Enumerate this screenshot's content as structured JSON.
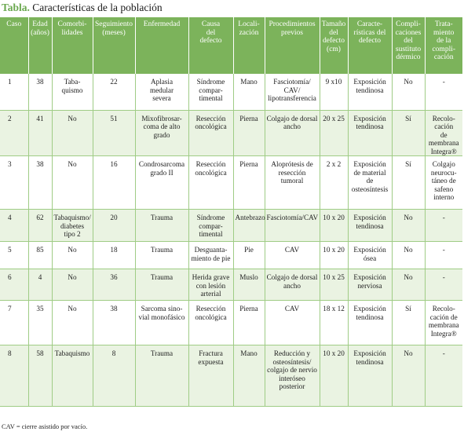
{
  "title": {
    "label": "Tabla.",
    "text": " Características de la población"
  },
  "headers": [
    "Caso",
    "Edad\n(años)",
    "Comorbi-\nlidades",
    "Seguimiento\n(meses)",
    "Enfermedad",
    "Causa\ndel\ndefecto",
    "Locali-\nzación",
    "Procedimientos\nprevios",
    "Tamaño\ndel\ndefecto\n(cm)",
    "Caracte-\nrísticas del\ndefecto",
    "Compli-\ncaciones\ndel\nsustituto\ndérmico",
    "Trata-\nmiento\nde la\ncompli-\ncación"
  ],
  "rows": [
    [
      "1",
      "38",
      "Taba-\nquismo",
      "22",
      "Aplasia\nmedular\nsevera",
      "Síndrome\ncompar-\ntimental",
      "Mano",
      "Fasciotomía/\nCAV/\nlipotransferencia",
      "9 x10",
      "Exposición\ntendinosa",
      "No",
      "-"
    ],
    [
      "2",
      "41",
      "No",
      "51",
      "Mixofibrosar-\ncoma de alto\ngrado",
      "Resección\noncológica",
      "Pierna",
      "Colgajo de dorsal\nancho",
      "20 x 25",
      "Exposición\ntendinosa",
      "Sí",
      "Recolo-\ncación\nde membrana\nIntegra®"
    ],
    [
      "3",
      "38",
      "No",
      "16",
      "Condrosarcoma\ngrado II",
      "Resección\noncológica",
      "Pierna",
      "Aloprótesis de\nresección tumoral",
      "2 x 2",
      "Exposición\nde material de\nosteosíntesis",
      "Sí",
      "Colgajo\nneurocu-\ntáneo de\nsafeno\ninterno"
    ],
    [
      "4",
      "62",
      "Tabaquismo/\ndiabetes\ntipo 2",
      "20",
      "Trauma",
      "Síndrome\ncompar-\ntimental",
      "Antebrazo",
      "Fasciotomía/CAV",
      "10 x 20",
      "Exposición\ntendinosa",
      "No",
      "-"
    ],
    [
      "5",
      "85",
      "No",
      "18",
      "Trauma",
      "Desguanta-\nmiento de pie",
      "Pie",
      "CAV",
      "10 x 20",
      "Exposición\nósea",
      "No",
      "-"
    ],
    [
      "6",
      "4",
      "No",
      "36",
      "Trauma",
      "Herida grave\ncon lesión\narterial",
      "Muslo",
      "Colgajo de dorsal\nancho",
      "10 x 25",
      "Exposición\nnerviosa",
      "No",
      "-"
    ],
    [
      "7",
      "35",
      "No",
      "38",
      "Sarcoma sino-\nvial monofásico",
      "Resección\noncológica",
      "Pierna",
      "CAV",
      "18 x 12",
      "Exposición\ntendinosa",
      "Sí",
      "Recolo-\ncación de\nmembrana\nIntegra®"
    ],
    [
      "8",
      "58",
      "Tabaquismo",
      "8",
      "Trauma",
      "Fractura\nexpuesta",
      "Mano",
      "Reducción y\nosteosíntesis/\ncolgajo de nervio\ninteróseo\nposterior",
      "10 x 20",
      "Exposición\ntendinosa",
      "No",
      "-"
    ]
  ],
  "footnote": "CAV = cierre asistido por vacío."
}
